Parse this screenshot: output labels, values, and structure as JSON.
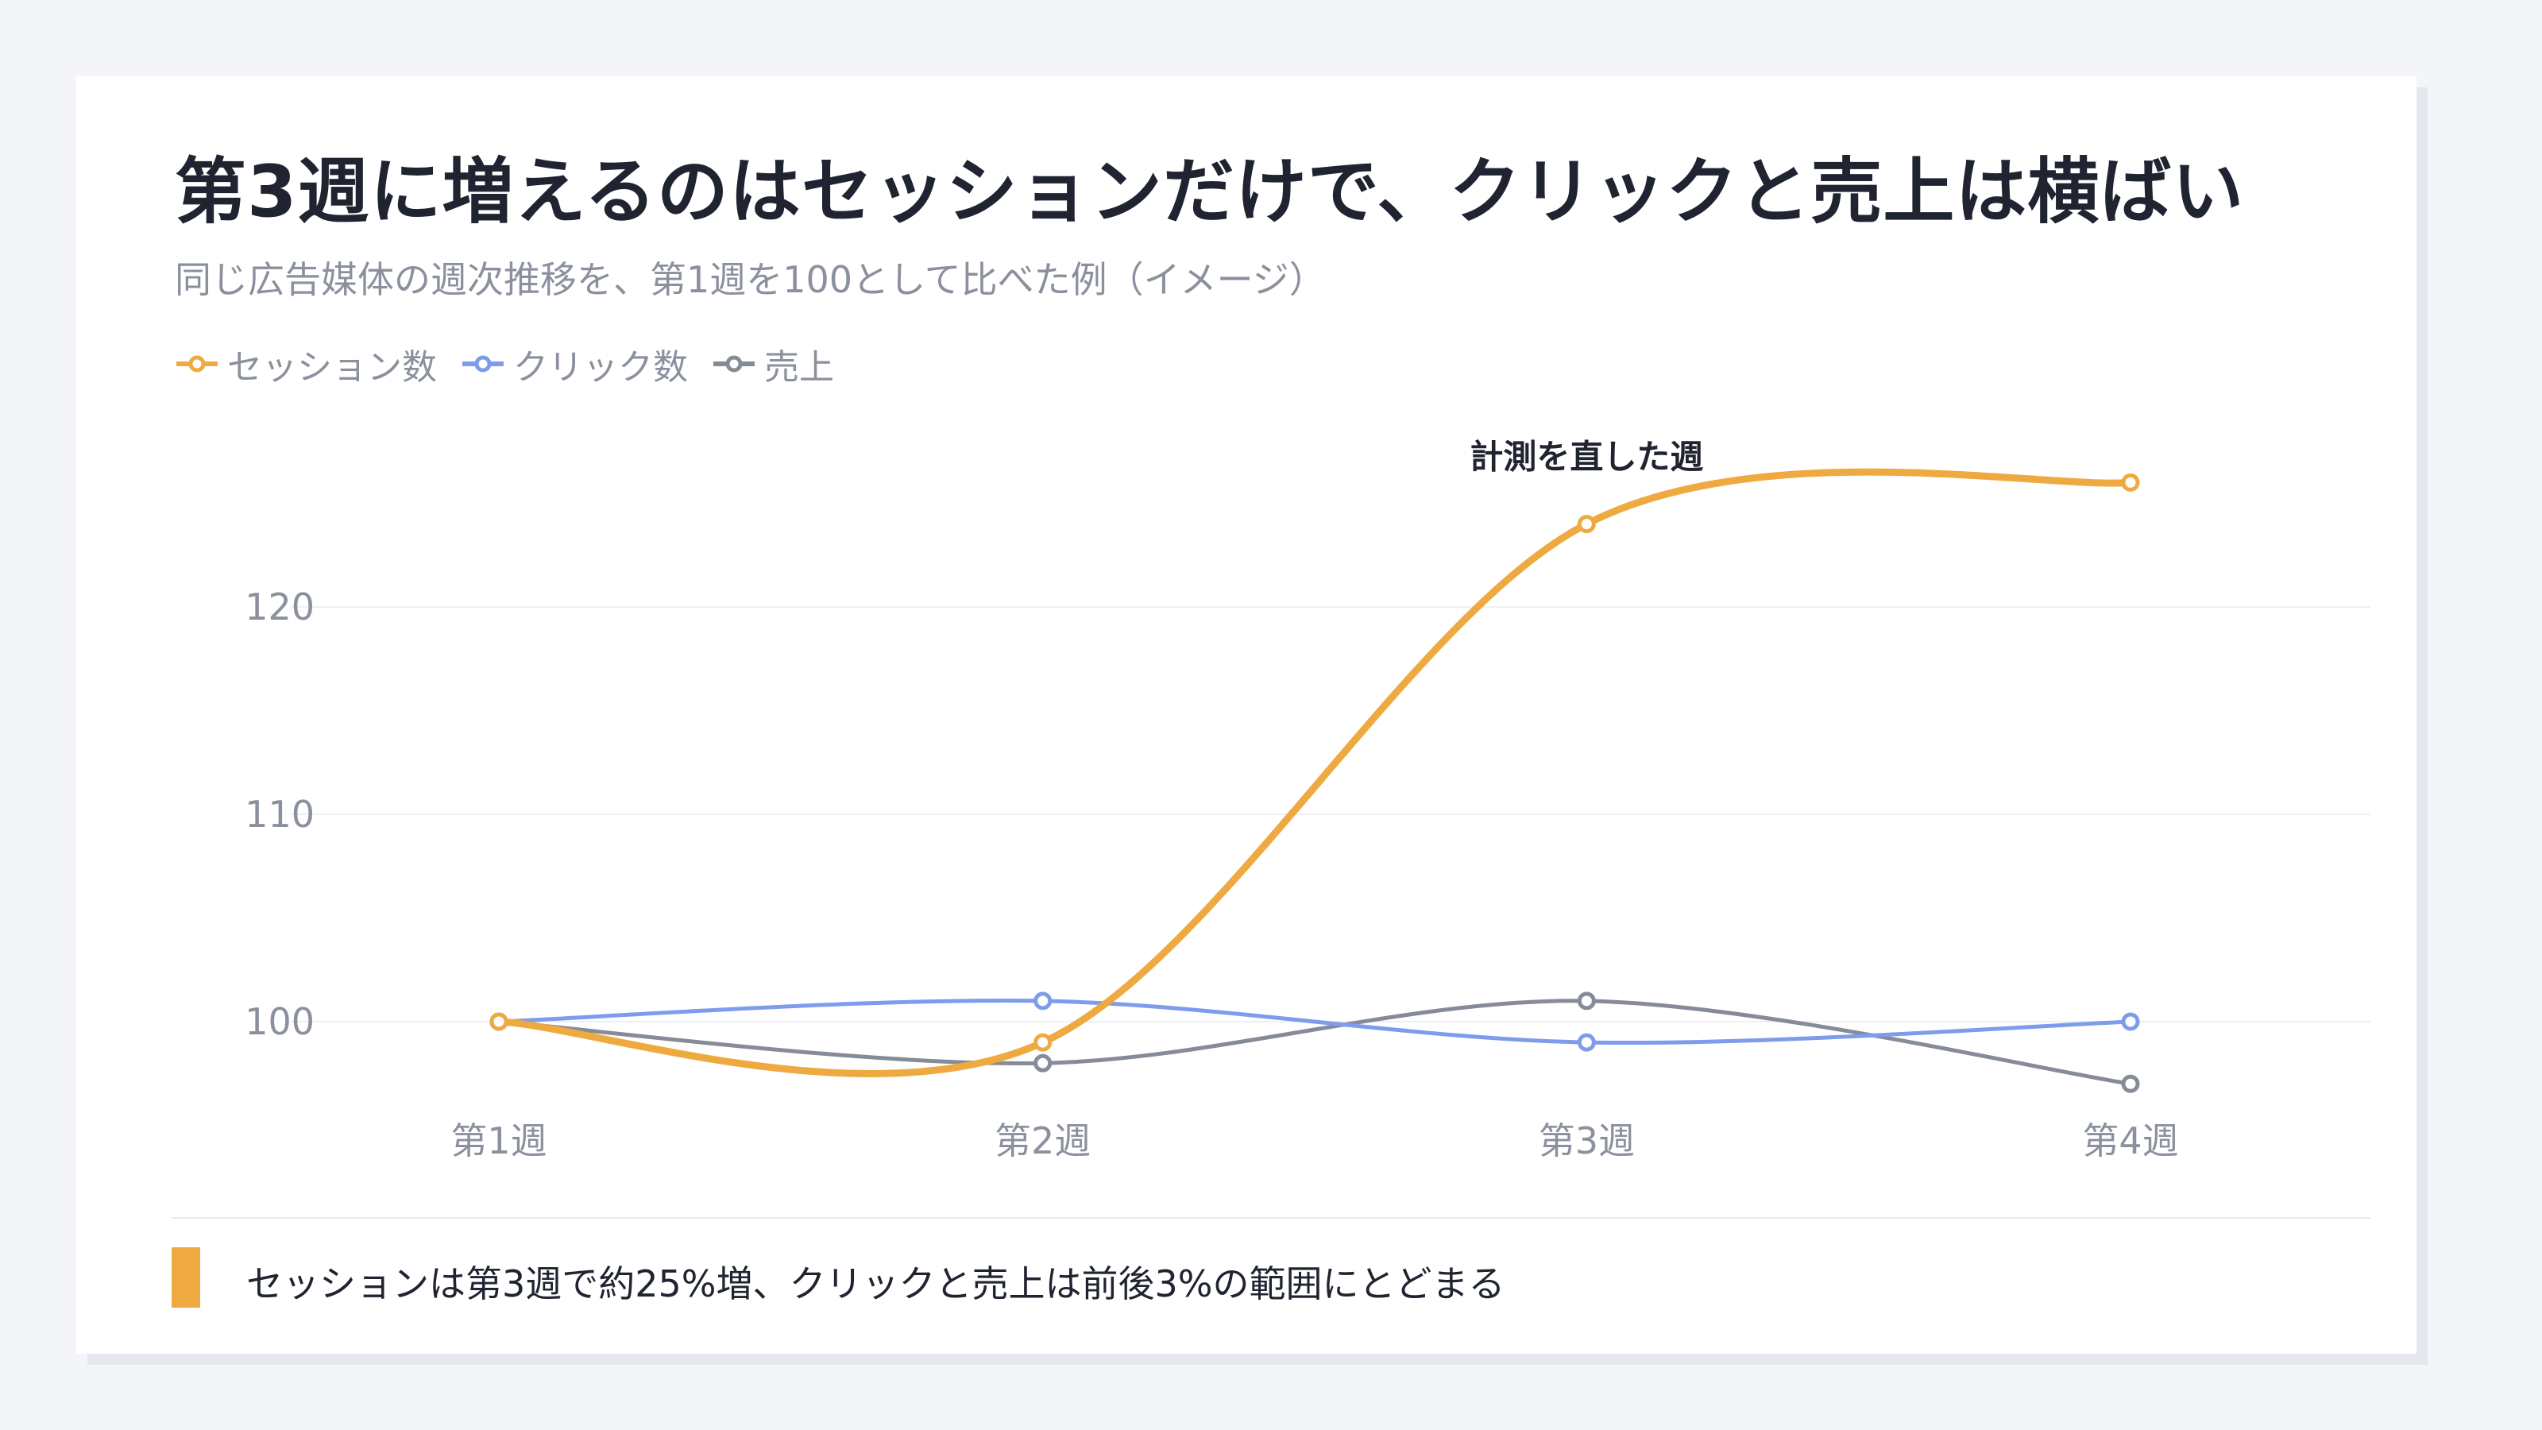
{
  "title": "第3週に増えるのはセッションだけで、クリックと売上は横ばい",
  "subtitle": "同じ広告媒体の週次推移を、第1週を100として比べた例（イメージ）",
  "footer_note": "セッションは第3週で約25%増、クリックと売上は前後3%の範囲にとどまる",
  "chart_data": {
    "type": "line",
    "categories": [
      "第1週",
      "第2週",
      "第3週",
      "第4週"
    ],
    "series": [
      {
        "name": "セッション数",
        "values": [
          100,
          99,
          124,
          126
        ],
        "color": "#eeaa40"
      },
      {
        "name": "クリック数",
        "values": [
          100,
          101,
          99,
          100
        ],
        "color": "#7f9cec"
      },
      {
        "name": "売上",
        "values": [
          100,
          98,
          101,
          97
        ],
        "color": "#868b98"
      }
    ],
    "y_ticks": [
      100,
      110,
      120
    ],
    "ylim": [
      95,
      130
    ],
    "grid": true,
    "legend": "top-left",
    "annotations": [
      {
        "text": "計測を直した週",
        "category": "第3週",
        "series": "セッション数"
      }
    ]
  }
}
